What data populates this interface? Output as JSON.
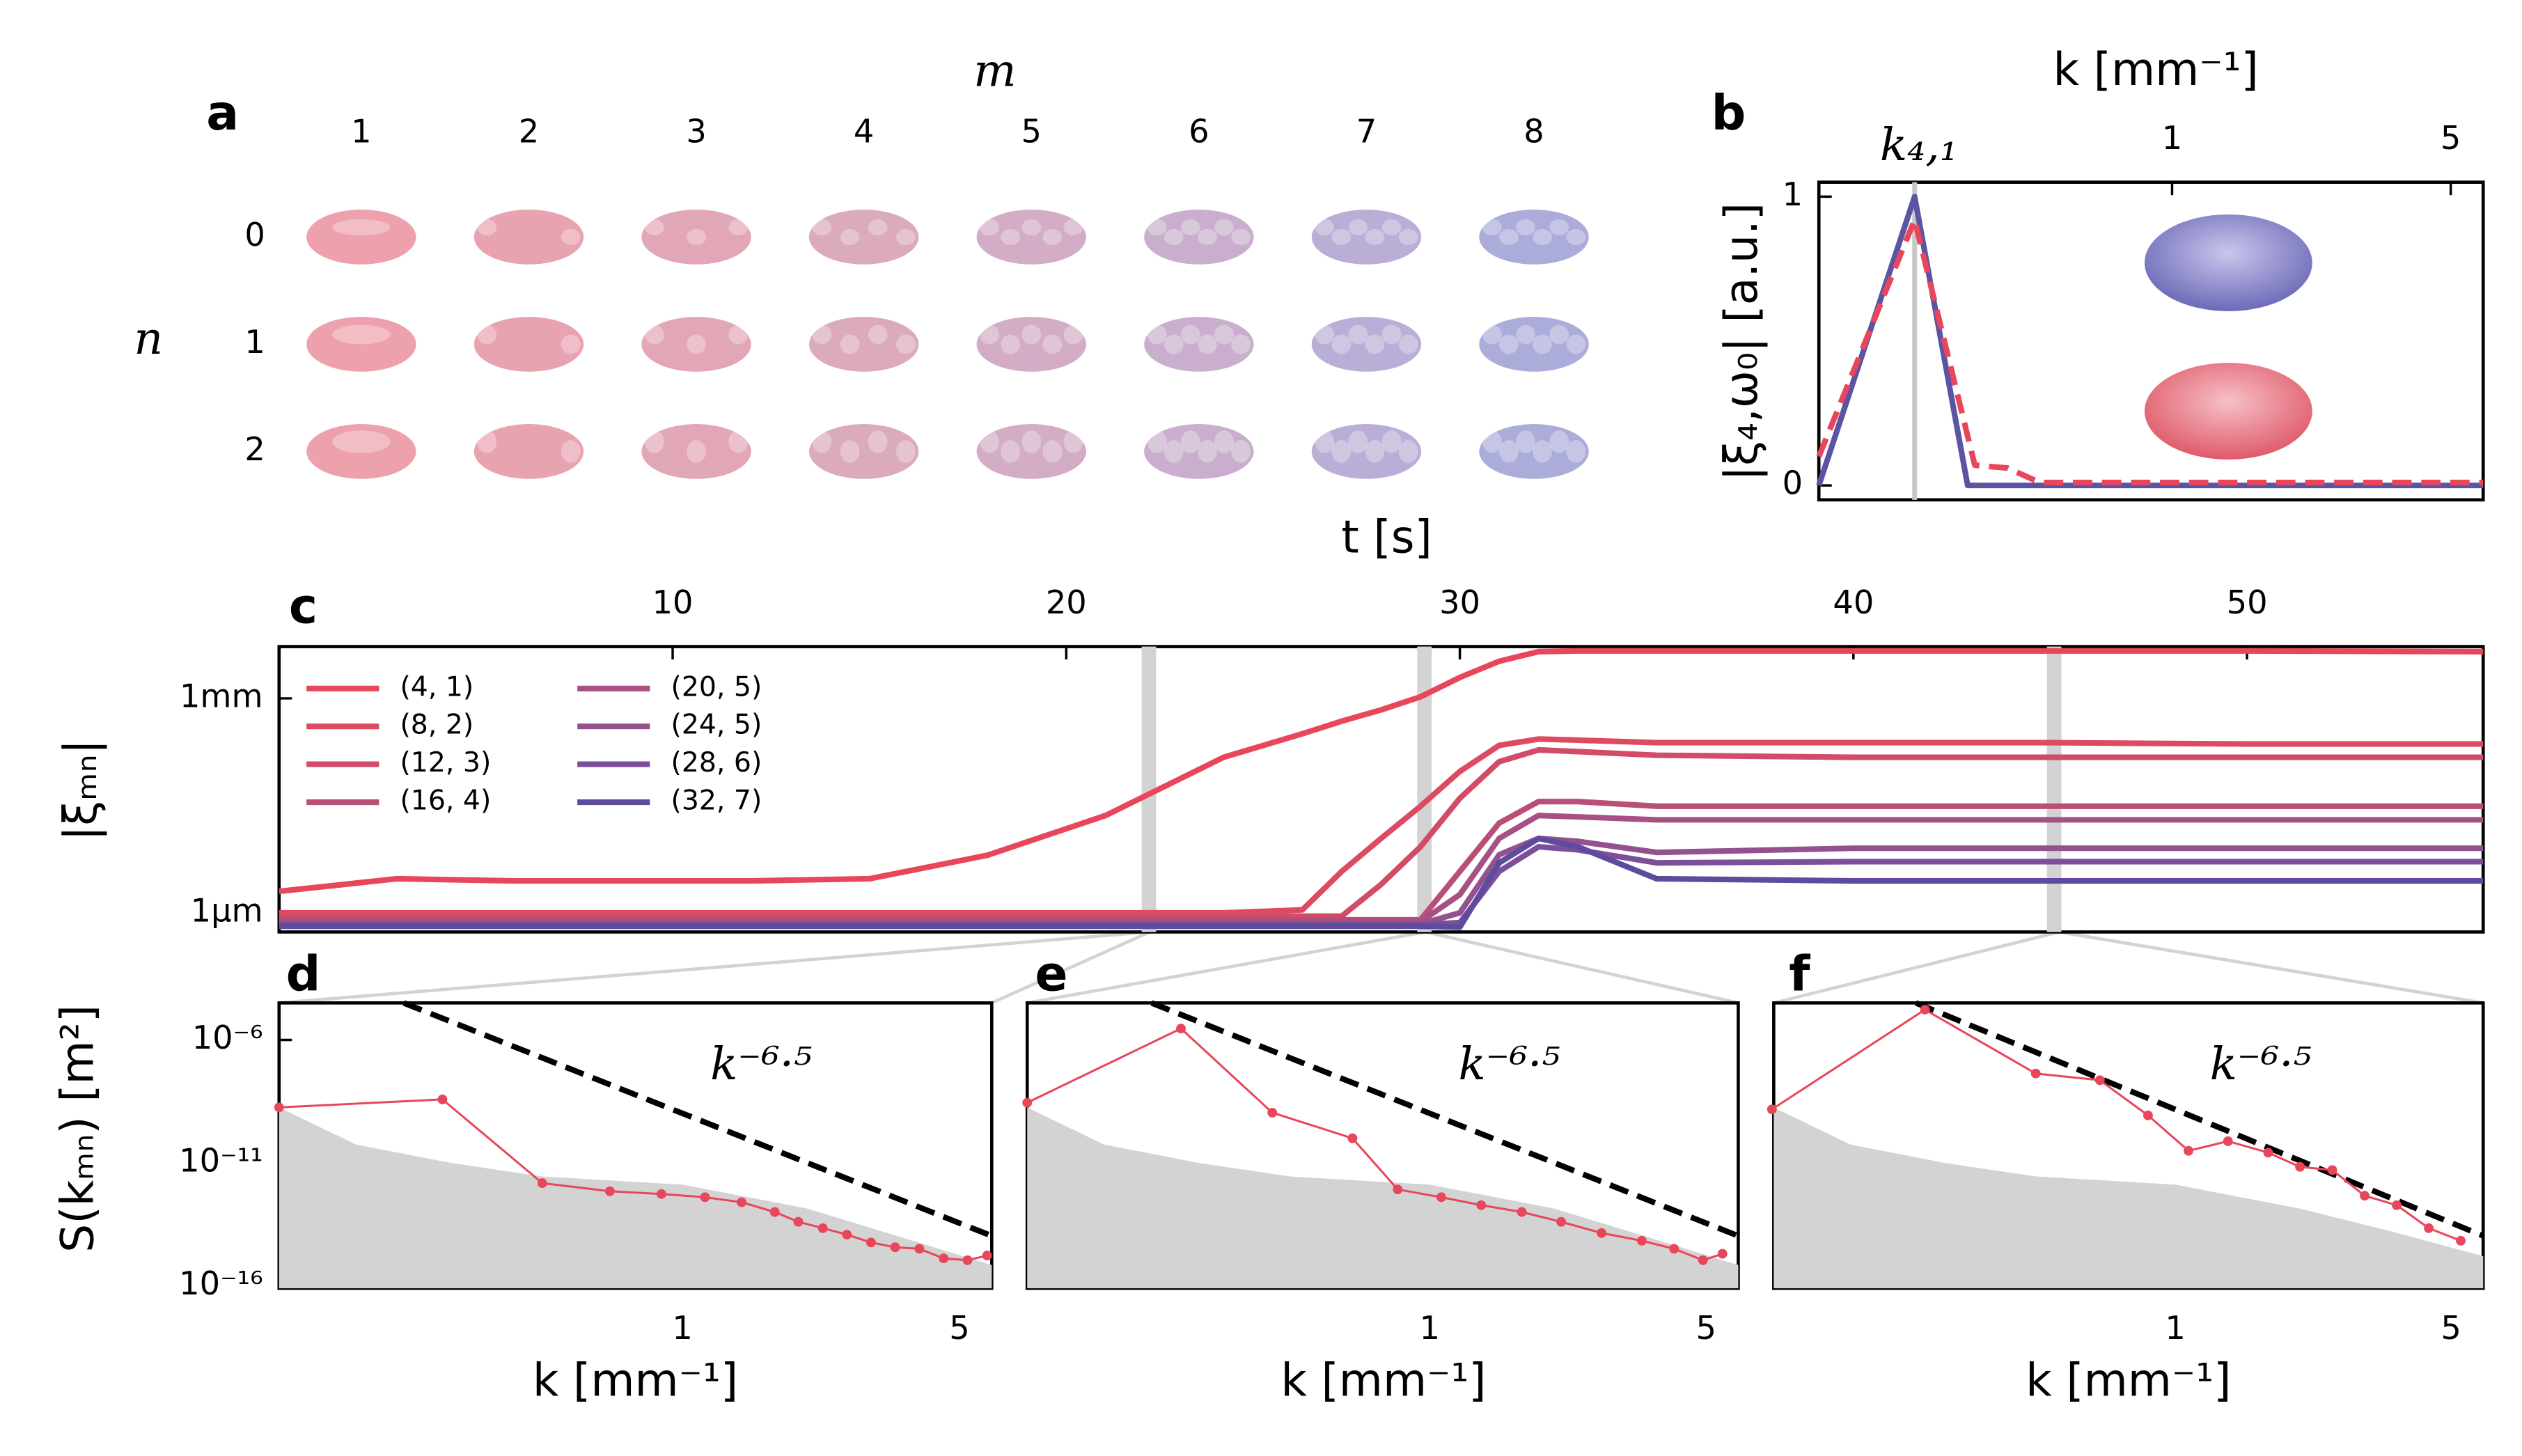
{
  "chart_data": [
    {
      "type": "mode-grid",
      "panel_label": "a",
      "x_label": "m",
      "y_label": "n",
      "columns": [
        1,
        2,
        3,
        4,
        5,
        6,
        7,
        8
      ],
      "rows": [
        0,
        1,
        2
      ],
      "column_colors": [
        "#eb97a3",
        "#e599a8",
        "#df9dae",
        "#d7a1b6",
        "#cea4bf",
        "#c3a6c8",
        "#b3a5d1",
        "#a3a3d6"
      ]
    },
    {
      "type": "line",
      "panel_label": "b",
      "x_label": "k [mm⁻¹]",
      "y_label": "|ξ₄,ω₀| [a.u.]",
      "xscale": "log",
      "xaxis": "top",
      "xlim": [
        0.13,
        6.03
      ],
      "xticks": [
        1,
        5
      ],
      "ylim": [
        -0.05,
        1.05
      ],
      "yticks": [
        0,
        1
      ],
      "marker_x": 0.226,
      "annotation": "k₄,₁",
      "series": [
        {
          "color": "#5b54a3",
          "style": "solid",
          "x": [
            0.13,
            0.226,
            0.307,
            6.03
          ],
          "values": [
            0,
            1,
            0,
            0
          ]
        },
        {
          "color": "#e8465a",
          "style": "dashed",
          "x": [
            0.13,
            0.226,
            0.32,
            0.387,
            0.466,
            6.03
          ],
          "values": [
            0.1,
            0.92,
            0.07,
            0.06,
            0.01,
            0.01
          ]
        }
      ]
    },
    {
      "type": "line",
      "panel_label": "c",
      "x_label": "t [s]",
      "y_label": "|ξₘₙ|",
      "yscale": "log",
      "xaxis": "top",
      "xlim": [
        0,
        56
      ],
      "xticks": [
        10,
        20,
        30,
        40,
        50
      ],
      "ylim": [
        5.4e-07,
        0.0053
      ],
      "yticks": [
        {
          "value": 0.001,
          "label": "1mm"
        },
        {
          "value": 1e-06,
          "label": "1μm"
        }
      ],
      "highlight_x": [
        22.1,
        29.1,
        45.1
      ],
      "legend": true,
      "x": [
        0,
        3,
        6,
        9,
        12,
        15,
        18,
        21,
        24,
        26,
        27,
        28,
        29,
        30,
        31,
        32,
        33,
        35,
        40,
        45,
        50,
        56
      ],
      "series": [
        {
          "name": "(4, 1)",
          "color": "#e8465a",
          "values": [
            2e-06,
            3e-06,
            2.8e-06,
            2.8e-06,
            2.8e-06,
            3e-06,
            6.4e-06,
            2.3e-05,
            0.00015,
            0.00032,
            0.00048,
            0.00069,
            0.00105,
            0.00196,
            0.0033,
            0.0045,
            0.0046,
            0.0046,
            0.0046,
            0.0046,
            0.0046,
            0.0045
          ]
        },
        {
          "name": "(8, 2)",
          "color": "#de4a61",
          "values": [
            1e-06,
            1e-06,
            1e-06,
            1e-06,
            1e-06,
            1e-06,
            1e-06,
            1e-06,
            1e-06,
            1.1e-06,
            3.8e-06,
            1.1e-05,
            3.1e-05,
            9.5e-05,
            0.00022,
            0.00027,
            0.00026,
            0.00024,
            0.00024,
            0.00024,
            0.00023,
            0.00023
          ]
        },
        {
          "name": "(12, 3)",
          "color": "#d24b67",
          "values": [
            9e-07,
            9e-07,
            9e-07,
            9e-07,
            9e-07,
            9e-07,
            9e-07,
            9e-07,
            9e-07,
            9e-07,
            9e-07,
            2.5e-06,
            8.4e-06,
            4e-05,
            0.00013,
            0.00019,
            0.00018,
            0.00016,
            0.00015,
            0.00015,
            0.00015,
            0.00015
          ]
        },
        {
          "name": "(16, 4)",
          "color": "#b94e78",
          "values": [
            8e-07,
            8e-07,
            8e-07,
            8e-07,
            8e-07,
            8e-07,
            8e-07,
            8e-07,
            8e-07,
            8e-07,
            8e-07,
            8e-07,
            8e-07,
            3.8e-06,
            1.8e-05,
            3.6e-05,
            3.6e-05,
            3.1e-05,
            3.1e-05,
            3.1e-05,
            3.1e-05,
            3.1e-05
          ]
        },
        {
          "name": "(20, 5)",
          "color": "#a65083",
          "values": [
            7.5e-07,
            7.5e-07,
            7.5e-07,
            7.5e-07,
            7.5e-07,
            7.5e-07,
            7.5e-07,
            7.5e-07,
            7.5e-07,
            7.5e-07,
            7.5e-07,
            7.5e-07,
            7.5e-07,
            1.8e-06,
            1.1e-05,
            2.3e-05,
            2.2e-05,
            2e-05,
            2e-05,
            2e-05,
            2e-05,
            2e-05
          ]
        },
        {
          "name": "(24, 5)",
          "color": "#93528f",
          "values": [
            7e-07,
            7e-07,
            7e-07,
            7e-07,
            7e-07,
            7e-07,
            7e-07,
            7e-07,
            7e-07,
            7e-07,
            7e-07,
            7e-07,
            7e-07,
            1e-06,
            6.5e-06,
            1.1e-05,
            1e-05,
            7e-06,
            8e-06,
            8e-06,
            8e-06,
            8e-06
          ]
        },
        {
          "name": "(28, 6)",
          "color": "#7b4f99",
          "values": [
            6.8e-07,
            6.8e-07,
            6.8e-07,
            6.8e-07,
            6.8e-07,
            6.8e-07,
            6.8e-07,
            6.8e-07,
            6.8e-07,
            6.8e-07,
            6.8e-07,
            6.8e-07,
            6.8e-07,
            7.3e-07,
            3.8e-06,
            8.4e-06,
            7.6e-06,
            5e-06,
            5.2e-06,
            5.2e-06,
            5.2e-06,
            5.2e-06
          ]
        },
        {
          "name": "(32, 7)",
          "color": "#5e4b9e",
          "values": [
            6.5e-07,
            6.5e-07,
            6.5e-07,
            6.5e-07,
            6.5e-07,
            6.5e-07,
            6.5e-07,
            6.5e-07,
            6.5e-07,
            6.5e-07,
            6.5e-07,
            6.5e-07,
            6.5e-07,
            6.3e-07,
            5e-06,
            1.1e-05,
            8.4e-06,
            3e-06,
            2.8e-06,
            2.8e-06,
            2.8e-06,
            2.8e-06
          ]
        }
      ]
    },
    {
      "type": "line",
      "panel_label": "d",
      "x_label": "k [mm⁻¹]",
      "y_label": "S(kₘₙ) [m²]",
      "annotation": "k⁻⁶·⁵",
      "xscale": "log",
      "yscale": "log",
      "xaxis": "bottom",
      "xlim": [
        0.096,
        6.03
      ],
      "xticks": [
        1,
        5
      ],
      "ylim": [
        7.9e-17,
        3.2e-05
      ],
      "yticks": [
        {
          "value": 1e-06,
          "label": "10⁻⁶"
        },
        {
          "value": 1e-11,
          "label": "10⁻¹¹"
        },
        {
          "value": 1e-16,
          "label": "10⁻¹⁶"
        }
      ],
      "series": [
        {
          "color": "#d3d3d3",
          "style": "area",
          "x": [
            0.096,
            0.15,
            0.26,
            0.443,
            1,
            2.06,
            3.6,
            6.03
          ],
          "values": [
            1.8e-09,
            5.6e-11,
            1e-11,
            2.8e-12,
            1.3e-12,
            1.4e-13,
            9e-15,
            7e-16
          ]
        },
        {
          "color": "#000000",
          "style": "dashed",
          "x": [
            0.198,
            6.03
          ],
          "values": [
            3.2e-05,
            1.07e-14
          ]
        },
        {
          "color": "#e8465a",
          "style": "markers",
          "x": [
            0.096,
            0.248,
            0.443,
            0.656,
            0.885,
            1.14,
            1.41,
            1.71,
            1.96,
            2.26,
            2.6,
            2.99,
            3.44,
            3.96,
            4.56,
            5.24,
            5.87
          ],
          "values": [
            1.8e-09,
            3.8e-09,
            1.5e-12,
            7e-13,
            5.4e-13,
            4e-13,
            2.5e-13,
            1e-13,
            4e-14,
            2.2e-14,
            1.2e-14,
            5.8e-15,
            3.7e-15,
            3.2e-15,
            1.3e-15,
            1.1e-15,
            1.7e-15
          ]
        }
      ]
    },
    {
      "type": "line",
      "panel_label": "e",
      "x_label": "k [mm⁻¹]",
      "annotation": "k⁻⁶·⁵",
      "xscale": "log",
      "yscale": "log",
      "xaxis": "bottom",
      "xlim": [
        0.096,
        6.03
      ],
      "xticks": [
        1,
        5
      ],
      "ylim": [
        7.9e-17,
        3.2e-05
      ],
      "series": [
        {
          "color": "#d3d3d3",
          "style": "area",
          "x": [
            0.096,
            0.15,
            0.26,
            0.443,
            1,
            2.06,
            3.6,
            6.03
          ],
          "values": [
            1.8e-09,
            5.6e-11,
            1e-11,
            2.8e-12,
            1.3e-12,
            1.4e-13,
            9e-15,
            7e-16
          ]
        },
        {
          "color": "#000000",
          "style": "dashed",
          "x": [
            0.198,
            6.03
          ],
          "values": [
            3.2e-05,
            1.07e-14
          ]
        },
        {
          "color": "#e8465a",
          "style": "markers",
          "x": [
            0.096,
            0.235,
            0.4,
            0.638,
            0.83,
            1.07,
            1.35,
            1.71,
            2.15,
            2.72,
            3.44,
            4.15,
            4.91,
            5.5
          ],
          "values": [
            2.8e-09,
            2.9e-06,
            1.1e-09,
            1e-10,
            8.3e-13,
            4e-13,
            1.9e-13,
            1e-13,
            4e-14,
            1.4e-14,
            6.8e-15,
            3.2e-15,
            1.1e-15,
            2e-15
          ]
        }
      ]
    },
    {
      "type": "line",
      "panel_label": "f",
      "x_label": "k [mm⁻¹]",
      "annotation": "k⁻⁶·⁵",
      "xscale": "log",
      "yscale": "log",
      "xaxis": "bottom",
      "xlim": [
        0.096,
        6.03
      ],
      "xticks": [
        1,
        5
      ],
      "ylim": [
        7.9e-17,
        3.2e-05
      ],
      "series": [
        {
          "color": "#d3d3d3",
          "style": "area",
          "x": [
            0.096,
            0.15,
            0.26,
            0.443,
            1,
            2.06,
            3.6,
            6.03
          ],
          "values": [
            1.8e-09,
            5.6e-11,
            1e-11,
            2.8e-12,
            1.3e-12,
            1.4e-13,
            1.5e-14,
            1.6e-15
          ]
        },
        {
          "color": "#000000",
          "style": "dashed",
          "x": [
            0.22,
            6.03
          ],
          "values": [
            3.2e-05,
            1.07e-14
          ]
        },
        {
          "color": "#e8465a",
          "style": "markers",
          "x": [
            0.095,
            0.232,
            0.443,
            0.644,
            0.853,
            1.08,
            1.36,
            1.72,
            2.07,
            2.5,
            3.02,
            3.64,
            4.39,
            5.29
          ],
          "values": [
            1.5e-09,
            1.7e-05,
            4.3e-08,
            2.3e-08,
            8.5e-10,
            3.1e-11,
            7.6e-11,
            2.6e-11,
            6.9e-12,
            5.1e-12,
            4.6e-13,
            1.9e-13,
            2.2e-14,
            6.8e-15
          ]
        }
      ]
    }
  ]
}
